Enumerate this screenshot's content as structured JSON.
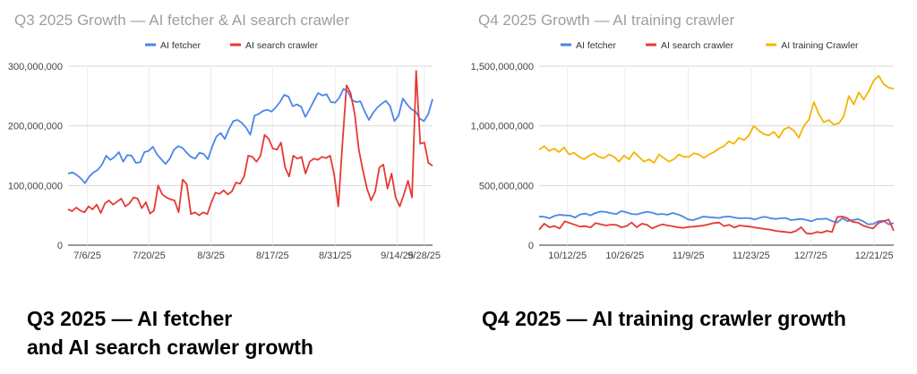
{
  "captions": {
    "left_line1": "Q3 2025 — AI fetcher",
    "left_line2": "and AI search crawler growth",
    "right": "Q4 2025 — AI training crawler growth"
  },
  "chart_data": [
    {
      "type": "line",
      "title": "Q3 2025 Growth — AI fetcher & AI search crawler",
      "xlabel": "",
      "ylabel": "",
      "ylim": [
        0,
        300000000
      ],
      "yticks": [
        0,
        100000000,
        200000000,
        300000000
      ],
      "ytick_labels": [
        "0",
        "100,000,000",
        "200,000,000",
        "300,000,000"
      ],
      "xtick_labels": [
        "7/6/25",
        "7/20/25",
        "8/3/25",
        "8/17/25",
        "8/31/25",
        "9/14/25",
        "9/28/25"
      ],
      "grid": true,
      "legend": "top-center",
      "series": [
        {
          "name": "AI fetcher",
          "color": "#4a86e8",
          "values": [
            120000000,
            122000000,
            118000000,
            112000000,
            104000000,
            115000000,
            122000000,
            126000000,
            135000000,
            150000000,
            143000000,
            148000000,
            156000000,
            140000000,
            151000000,
            150000000,
            138000000,
            139000000,
            156000000,
            158000000,
            165000000,
            152000000,
            144000000,
            136000000,
            145000000,
            160000000,
            166000000,
            163000000,
            155000000,
            148000000,
            145000000,
            155000000,
            153000000,
            144000000,
            165000000,
            182000000,
            188000000,
            178000000,
            195000000,
            208000000,
            210000000,
            205000000,
            197000000,
            185000000,
            217000000,
            220000000,
            225000000,
            227000000,
            224000000,
            231000000,
            240000000,
            252000000,
            249000000,
            233000000,
            236000000,
            232000000,
            215000000,
            228000000,
            242000000,
            255000000,
            251000000,
            253000000,
            240000000,
            239000000,
            247000000,
            262000000,
            258000000,
            243000000,
            240000000,
            241000000,
            224000000,
            210000000,
            222000000,
            231000000,
            237000000,
            242000000,
            233000000,
            208000000,
            217000000,
            246000000,
            236000000,
            228000000,
            224000000,
            212000000,
            208000000,
            220000000,
            245000000
          ]
        },
        {
          "name": "AI search crawler",
          "color": "#e53935",
          "values": [
            60000000,
            57000000,
            63000000,
            58000000,
            55000000,
            65000000,
            60000000,
            68000000,
            54000000,
            70000000,
            75000000,
            68000000,
            73000000,
            78000000,
            65000000,
            70000000,
            80000000,
            78000000,
            62000000,
            72000000,
            53000000,
            58000000,
            100000000,
            85000000,
            80000000,
            77000000,
            75000000,
            55000000,
            110000000,
            102000000,
            52000000,
            55000000,
            50000000,
            55000000,
            52000000,
            72000000,
            88000000,
            86000000,
            92000000,
            85000000,
            90000000,
            105000000,
            103000000,
            115000000,
            150000000,
            148000000,
            140000000,
            150000000,
            185000000,
            178000000,
            162000000,
            160000000,
            172000000,
            130000000,
            115000000,
            150000000,
            145000000,
            148000000,
            120000000,
            140000000,
            145000000,
            143000000,
            148000000,
            146000000,
            150000000,
            118000000,
            65000000,
            170000000,
            268000000,
            255000000,
            220000000,
            160000000,
            125000000,
            95000000,
            75000000,
            90000000,
            130000000,
            135000000,
            95000000,
            120000000,
            80000000,
            65000000,
            85000000,
            108000000,
            80000000,
            292000000,
            170000000,
            172000000,
            138000000,
            133000000
          ]
        }
      ]
    },
    {
      "type": "line",
      "title": "Q4 2025 Growth — AI training crawler",
      "xlabel": "",
      "ylabel": "",
      "ylim": [
        0,
        1500000000
      ],
      "yticks": [
        0,
        500000000,
        1000000000,
        1500000000
      ],
      "ytick_labels": [
        "0",
        "500,000,000",
        "1,000,000,000",
        "1,500,000,000"
      ],
      "xtick_labels": [
        "10/12/25",
        "10/26/25",
        "11/9/25",
        "11/23/25",
        "12/7/25",
        "12/21/25"
      ],
      "grid": true,
      "legend": "top-center",
      "series": [
        {
          "name": "AI fetcher",
          "color": "#4a86e8",
          "values": [
            240000000,
            238000000,
            225000000,
            245000000,
            255000000,
            250000000,
            248000000,
            232000000,
            258000000,
            265000000,
            250000000,
            270000000,
            282000000,
            278000000,
            268000000,
            260000000,
            285000000,
            275000000,
            262000000,
            258000000,
            270000000,
            280000000,
            272000000,
            258000000,
            262000000,
            255000000,
            270000000,
            258000000,
            240000000,
            215000000,
            210000000,
            225000000,
            240000000,
            235000000,
            232000000,
            228000000,
            238000000,
            240000000,
            232000000,
            225000000,
            228000000,
            226000000,
            215000000,
            230000000,
            238000000,
            225000000,
            220000000,
            225000000,
            228000000,
            210000000,
            215000000,
            220000000,
            212000000,
            200000000,
            218000000,
            220000000,
            222000000,
            202000000,
            190000000,
            225000000,
            202000000,
            210000000,
            218000000,
            202000000,
            175000000,
            178000000,
            200000000,
            205000000,
            175000000,
            185000000
          ]
        },
        {
          "name": "AI search crawler",
          "color": "#e53935",
          "values": [
            130000000,
            180000000,
            150000000,
            160000000,
            140000000,
            200000000,
            185000000,
            170000000,
            155000000,
            160000000,
            148000000,
            185000000,
            175000000,
            165000000,
            172000000,
            170000000,
            150000000,
            160000000,
            190000000,
            150000000,
            180000000,
            170000000,
            140000000,
            160000000,
            175000000,
            165000000,
            158000000,
            150000000,
            145000000,
            152000000,
            155000000,
            160000000,
            165000000,
            175000000,
            185000000,
            190000000,
            160000000,
            170000000,
            148000000,
            165000000,
            160000000,
            155000000,
            148000000,
            142000000,
            135000000,
            130000000,
            120000000,
            115000000,
            110000000,
            105000000,
            120000000,
            150000000,
            100000000,
            95000000,
            110000000,
            105000000,
            120000000,
            110000000,
            235000000,
            240000000,
            225000000,
            195000000,
            190000000,
            165000000,
            150000000,
            140000000,
            185000000,
            200000000,
            215000000,
            120000000
          ]
        },
        {
          "name": "AI training Crawler",
          "color": "#f4b400",
          "values": [
            800000000,
            830000000,
            790000000,
            810000000,
            780000000,
            820000000,
            760000000,
            775000000,
            740000000,
            720000000,
            750000000,
            770000000,
            740000000,
            730000000,
            760000000,
            740000000,
            700000000,
            750000000,
            720000000,
            780000000,
            740000000,
            700000000,
            720000000,
            690000000,
            760000000,
            730000000,
            700000000,
            720000000,
            760000000,
            740000000,
            740000000,
            770000000,
            760000000,
            730000000,
            760000000,
            780000000,
            810000000,
            830000000,
            870000000,
            850000000,
            900000000,
            880000000,
            920000000,
            1000000000,
            960000000,
            930000000,
            920000000,
            950000000,
            900000000,
            970000000,
            990000000,
            960000000,
            900000000,
            1000000000,
            1050000000,
            1200000000,
            1100000000,
            1030000000,
            1050000000,
            1010000000,
            1020000000,
            1080000000,
            1250000000,
            1180000000,
            1280000000,
            1220000000,
            1290000000,
            1380000000,
            1420000000,
            1350000000,
            1320000000,
            1310000000
          ]
        }
      ]
    }
  ]
}
